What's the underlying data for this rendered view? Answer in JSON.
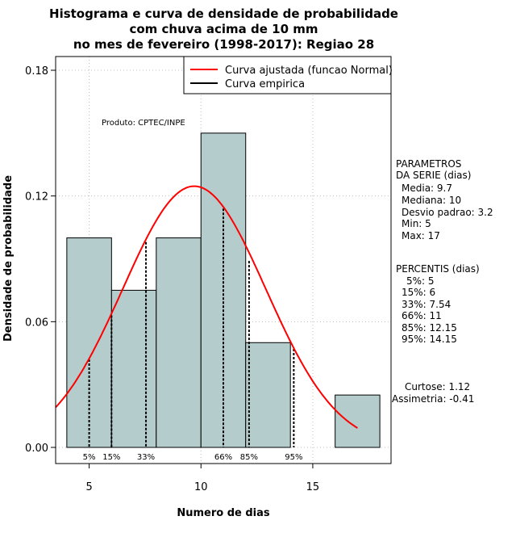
{
  "chart_data": {
    "type": "histogram",
    "title_lines": [
      "Histograma e curva de densidade de probabilidade",
      "com chuva acima de 10 mm",
      "no mes de fevereiro (1998-2017): Regiao 28"
    ],
    "xlabel": "Numero de dias",
    "ylabel": "Densidade de probabilidade",
    "xlim": [
      3.5,
      18.5
    ],
    "ylim": [
      0,
      0.18
    ],
    "x_ticks": [
      5,
      10,
      15
    ],
    "y_ticks": [
      0.0,
      0.06,
      0.12,
      0.18
    ],
    "y_tick_labels": [
      "0.00",
      "0.06",
      "0.12",
      "0.18"
    ],
    "grid": true,
    "bins": [
      {
        "start": 4,
        "end": 6,
        "density": 0.1
      },
      {
        "start": 6,
        "end": 8,
        "density": 0.075
      },
      {
        "start": 8,
        "end": 10,
        "density": 0.1
      },
      {
        "start": 10,
        "end": 12,
        "density": 0.15
      },
      {
        "start": 12,
        "end": 14,
        "density": 0.05
      },
      {
        "start": 14,
        "end": 16,
        "density": 0.0
      },
      {
        "start": 16,
        "end": 18,
        "density": 0.025
      }
    ],
    "normal_curve": {
      "name": "Curva ajustada (funcao Normal)",
      "mean": 9.7,
      "sd": 3.2,
      "x_range": [
        3.5,
        17
      ]
    },
    "empirical_curve": {
      "name": "Curva empirica"
    },
    "percentile_lines": [
      {
        "label": "5%",
        "x": 5,
        "density": 0.042
      },
      {
        "label": "15%",
        "x": 6,
        "density": 0.063
      },
      {
        "label": "33%",
        "x": 7.54,
        "density": 0.098
      },
      {
        "label": "66%",
        "x": 11,
        "density": 0.114
      },
      {
        "label": "85%",
        "x": 12.15,
        "density": 0.089
      },
      {
        "label": "95%",
        "x": 14.15,
        "density": 0.047
      }
    ],
    "annotation": "Produto: CPTEC/INPE",
    "legend_position": "top-right",
    "colors": {
      "bar_fill": "#b4cccc",
      "curve": "#ff0000",
      "empirical": "#000000",
      "grid": "#bebebe"
    }
  },
  "side_panel": {
    "parametros": {
      "header": "PARAMETROS",
      "header2": "DA SERIE (dias)",
      "media": "Media: 9.7",
      "mediana": "Mediana: 10",
      "desvio": "Desvio padrao: 3.2",
      "min": "Min: 5",
      "max": "Max: 17"
    },
    "percentis": {
      "header": "PERCENTIS (dias)",
      "p5": "5%: 5",
      "p15": "15%: 6",
      "p33": "33%: 7.54",
      "p66": "66%: 11",
      "p85": "85%: 12.15",
      "p95": "95%: 14.15"
    },
    "curtose": "Curtose: 1.12",
    "assimetria": "Assimetria: -0.41"
  }
}
